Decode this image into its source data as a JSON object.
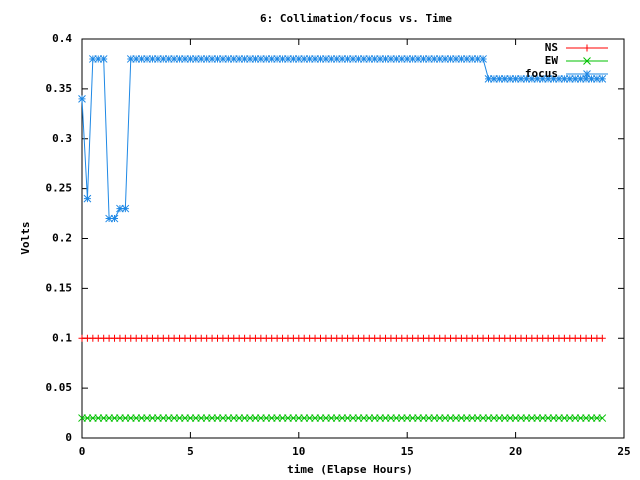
{
  "chart_data": {
    "type": "line",
    "title": "6: Collimation/focus vs. Time",
    "x_label": "time (Elapse Hours)",
    "y_label": "Volts",
    "x": [
      0,
      0.25,
      0.5,
      0.75,
      1,
      1.25,
      1.5,
      1.75,
      2,
      2.25,
      2.5,
      2.75,
      3,
      3.25,
      3.5,
      3.75,
      4,
      4.25,
      4.5,
      4.75,
      5,
      5.25,
      5.5,
      5.75,
      6,
      6.25,
      6.5,
      6.75,
      7,
      7.25,
      7.5,
      7.75,
      8,
      8.25,
      8.5,
      8.75,
      9,
      9.25,
      9.5,
      9.75,
      10,
      10.25,
      10.5,
      10.75,
      11,
      11.25,
      11.5,
      11.75,
      12,
      12.25,
      12.5,
      12.75,
      13,
      13.25,
      13.5,
      13.75,
      14,
      14.25,
      14.5,
      14.75,
      15,
      15.25,
      15.5,
      15.75,
      16,
      16.25,
      16.5,
      16.75,
      17,
      17.25,
      17.5,
      17.75,
      18,
      18.25,
      18.5,
      18.75,
      19,
      19.25,
      19.5,
      19.75,
      20,
      20.25,
      20.5,
      20.75,
      21,
      21.25,
      21.5,
      21.75,
      22,
      22.25,
      22.5,
      22.75,
      23,
      23.25,
      23.5,
      23.75,
      24
    ],
    "series": [
      {
        "name": "NS",
        "color": "#ff0000",
        "marker": "plus",
        "values": [
          0.1,
          0.1,
          0.1,
          0.1,
          0.1,
          0.1,
          0.1,
          0.1,
          0.1,
          0.1,
          0.1,
          0.1,
          0.1,
          0.1,
          0.1,
          0.1,
          0.1,
          0.1,
          0.1,
          0.1,
          0.1,
          0.1,
          0.1,
          0.1,
          0.1,
          0.1,
          0.1,
          0.1,
          0.1,
          0.1,
          0.1,
          0.1,
          0.1,
          0.1,
          0.1,
          0.1,
          0.1,
          0.1,
          0.1,
          0.1,
          0.1,
          0.1,
          0.1,
          0.1,
          0.1,
          0.1,
          0.1,
          0.1,
          0.1,
          0.1,
          0.1,
          0.1,
          0.1,
          0.1,
          0.1,
          0.1,
          0.1,
          0.1,
          0.1,
          0.1,
          0.1,
          0.1,
          0.1,
          0.1,
          0.1,
          0.1,
          0.1,
          0.1,
          0.1,
          0.1,
          0.1,
          0.1,
          0.1,
          0.1,
          0.1,
          0.1,
          0.1,
          0.1,
          0.1,
          0.1,
          0.1,
          0.1,
          0.1,
          0.1,
          0.1,
          0.1,
          0.1,
          0.1,
          0.1,
          0.1,
          0.1,
          0.1,
          0.1,
          0.1,
          0.1,
          0.1,
          0.1
        ]
      },
      {
        "name": "EW",
        "color": "#00c000",
        "marker": "cross",
        "values": [
          0.02,
          0.02,
          0.02,
          0.02,
          0.02,
          0.02,
          0.02,
          0.02,
          0.02,
          0.02,
          0.02,
          0.02,
          0.02,
          0.02,
          0.02,
          0.02,
          0.02,
          0.02,
          0.02,
          0.02,
          0.02,
          0.02,
          0.02,
          0.02,
          0.02,
          0.02,
          0.02,
          0.02,
          0.02,
          0.02,
          0.02,
          0.02,
          0.02,
          0.02,
          0.02,
          0.02,
          0.02,
          0.02,
          0.02,
          0.02,
          0.02,
          0.02,
          0.02,
          0.02,
          0.02,
          0.02,
          0.02,
          0.02,
          0.02,
          0.02,
          0.02,
          0.02,
          0.02,
          0.02,
          0.02,
          0.02,
          0.02,
          0.02,
          0.02,
          0.02,
          0.02,
          0.02,
          0.02,
          0.02,
          0.02,
          0.02,
          0.02,
          0.02,
          0.02,
          0.02,
          0.02,
          0.02,
          0.02,
          0.02,
          0.02,
          0.02,
          0.02,
          0.02,
          0.02,
          0.02,
          0.02,
          0.02,
          0.02,
          0.02,
          0.02,
          0.02,
          0.02,
          0.02,
          0.02,
          0.02,
          0.02,
          0.02,
          0.02,
          0.02,
          0.02,
          0.02,
          0.02
        ]
      },
      {
        "name": "focus",
        "color": "#1e88e5",
        "marker": "star",
        "values": [
          0.34,
          0.24,
          0.38,
          0.38,
          0.38,
          0.22,
          0.22,
          0.23,
          0.23,
          0.38,
          0.38,
          0.38,
          0.38,
          0.38,
          0.38,
          0.38,
          0.38,
          0.38,
          0.38,
          0.38,
          0.38,
          0.38,
          0.38,
          0.38,
          0.38,
          0.38,
          0.38,
          0.38,
          0.38,
          0.38,
          0.38,
          0.38,
          0.38,
          0.38,
          0.38,
          0.38,
          0.38,
          0.38,
          0.38,
          0.38,
          0.38,
          0.38,
          0.38,
          0.38,
          0.38,
          0.38,
          0.38,
          0.38,
          0.38,
          0.38,
          0.38,
          0.38,
          0.38,
          0.38,
          0.38,
          0.38,
          0.38,
          0.38,
          0.38,
          0.38,
          0.38,
          0.38,
          0.38,
          0.38,
          0.38,
          0.38,
          0.38,
          0.38,
          0.38,
          0.38,
          0.38,
          0.38,
          0.38,
          0.38,
          0.38,
          0.36,
          0.36,
          0.36,
          0.36,
          0.36,
          0.36,
          0.36,
          0.36,
          0.36,
          0.36,
          0.36,
          0.36,
          0.36,
          0.36,
          0.36,
          0.36,
          0.36,
          0.36,
          0.36,
          0.36,
          0.36,
          0.36
        ]
      }
    ],
    "xlim": [
      0,
      25
    ],
    "xticks": [
      0,
      5,
      10,
      15,
      20,
      25
    ],
    "ylim": [
      0,
      0.4
    ],
    "yticks": [
      0,
      0.05,
      0.1,
      0.15,
      0.2,
      0.25,
      0.3,
      0.35,
      0.4
    ],
    "grid": false,
    "legend": "top-right"
  }
}
